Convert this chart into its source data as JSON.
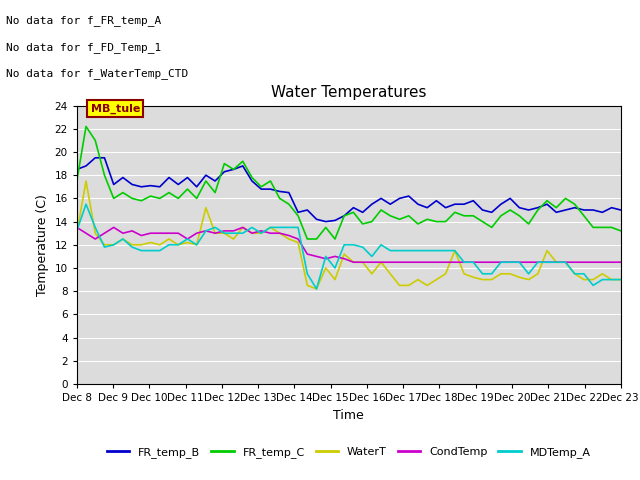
{
  "title": "Water Temperatures",
  "xlabel": "Time",
  "ylabel": "Temperature (C)",
  "ylim": [
    0,
    24
  ],
  "yticks": [
    0,
    2,
    4,
    6,
    8,
    10,
    12,
    14,
    16,
    18,
    20,
    22,
    24
  ],
  "bg_color": "#dcdcdc",
  "fig_color": "#ffffff",
  "messages": [
    "No data for f_FR_temp_A",
    "No data for f_FD_Temp_1",
    "No data for f_WaterTemp_CTD"
  ],
  "mb_tule_label": "MB_tule",
  "x_labels": [
    "Dec 8",
    "Dec 9",
    "Dec 10",
    "Dec 11",
    "Dec 12",
    "Dec 13",
    "Dec 14",
    "Dec 15",
    "Dec 16",
    "Dec 17",
    "Dec 18",
    "Dec 19",
    "Dec 20",
    "Dec 21",
    "Dec 22",
    "Dec 23"
  ],
  "series": {
    "FR_temp_B": {
      "color": "#0000cc",
      "linewidth": 1.2,
      "values": [
        18.5,
        18.8,
        19.5,
        19.5,
        17.2,
        17.8,
        17.2,
        17.0,
        17.1,
        17.0,
        17.8,
        17.2,
        17.8,
        17.0,
        18.0,
        17.5,
        18.3,
        18.5,
        18.8,
        17.5,
        16.8,
        16.8,
        16.6,
        16.5,
        14.8,
        15.0,
        14.2,
        14.0,
        14.1,
        14.5,
        15.2,
        14.8,
        15.5,
        16.0,
        15.5,
        16.0,
        16.2,
        15.5,
        15.2,
        15.8,
        15.2,
        15.5,
        15.5,
        15.8,
        15.0,
        14.8,
        15.5,
        16.0,
        15.2,
        15.0,
        15.2,
        15.5,
        14.8,
        15.0,
        15.2,
        15.0,
        15.0,
        14.8,
        15.2,
        15.0
      ]
    },
    "FR_temp_C": {
      "color": "#00cc00",
      "linewidth": 1.2,
      "values": [
        17.5,
        22.2,
        21.0,
        18.0,
        16.0,
        16.5,
        16.0,
        15.8,
        16.2,
        16.0,
        16.5,
        16.0,
        16.8,
        16.0,
        17.5,
        16.5,
        19.0,
        18.5,
        19.2,
        17.8,
        17.0,
        17.5,
        16.0,
        15.5,
        14.5,
        12.5,
        12.5,
        13.5,
        12.5,
        14.5,
        14.8,
        13.8,
        14.0,
        15.0,
        14.5,
        14.2,
        14.5,
        13.8,
        14.2,
        14.0,
        14.0,
        14.8,
        14.5,
        14.5,
        14.0,
        13.5,
        14.5,
        15.0,
        14.5,
        13.8,
        15.0,
        15.8,
        15.2,
        16.0,
        15.5,
        14.5,
        13.5,
        13.5,
        13.5,
        13.2
      ]
    },
    "WaterT": {
      "color": "#cccc00",
      "linewidth": 1.2,
      "values": [
        13.0,
        17.5,
        13.0,
        12.0,
        12.0,
        12.5,
        12.0,
        12.0,
        12.2,
        12.0,
        12.5,
        12.0,
        12.2,
        12.0,
        15.2,
        13.0,
        13.0,
        12.5,
        13.5,
        13.0,
        13.0,
        13.5,
        13.0,
        12.5,
        12.2,
        8.5,
        8.2,
        10.0,
        9.0,
        11.2,
        10.5,
        10.5,
        9.5,
        10.5,
        9.5,
        8.5,
        8.5,
        9.0,
        8.5,
        9.0,
        9.5,
        11.5,
        9.5,
        9.2,
        9.0,
        9.0,
        9.5,
        9.5,
        9.2,
        9.0,
        9.5,
        11.5,
        10.5,
        10.5,
        9.5,
        9.0,
        9.0,
        9.5,
        9.0,
        9.0
      ]
    },
    "CondTemp": {
      "color": "#cc00cc",
      "linewidth": 1.2,
      "values": [
        13.5,
        13.0,
        12.5,
        13.0,
        13.5,
        13.0,
        13.2,
        12.8,
        13.0,
        13.0,
        13.0,
        13.0,
        12.5,
        13.0,
        13.2,
        13.0,
        13.2,
        13.2,
        13.5,
        13.0,
        13.2,
        13.0,
        13.0,
        12.8,
        12.5,
        11.2,
        11.0,
        10.8,
        11.0,
        10.8,
        10.5,
        10.5,
        10.5,
        10.5,
        10.5,
        10.5,
        10.5,
        10.5,
        10.5,
        10.5,
        10.5,
        10.5,
        10.5,
        10.5,
        10.5,
        10.5,
        10.5,
        10.5,
        10.5,
        10.5,
        10.5,
        10.5,
        10.5,
        10.5,
        10.5,
        10.5,
        10.5,
        10.5,
        10.5,
        10.5
      ]
    },
    "MDTemp_A": {
      "color": "#00cccc",
      "linewidth": 1.2,
      "values": [
        13.2,
        15.5,
        13.5,
        11.8,
        12.0,
        12.5,
        11.8,
        11.5,
        11.5,
        11.5,
        12.0,
        12.0,
        12.5,
        12.0,
        13.2,
        13.5,
        13.0,
        13.0,
        13.0,
        13.5,
        13.0,
        13.5,
        13.5,
        13.5,
        13.5,
        9.5,
        8.2,
        11.0,
        10.0,
        12.0,
        12.0,
        11.8,
        11.0,
        12.0,
        11.5,
        11.5,
        11.5,
        11.5,
        11.5,
        11.5,
        11.5,
        11.5,
        10.5,
        10.5,
        9.5,
        9.5,
        10.5,
        10.5,
        10.5,
        9.5,
        10.5,
        10.5,
        10.5,
        10.5,
        9.5,
        9.5,
        8.5,
        9.0,
        9.0,
        9.0
      ]
    }
  },
  "legend_entries": [
    "FR_temp_B",
    "FR_temp_C",
    "WaterT",
    "CondTemp",
    "MDTemp_A"
  ],
  "legend_colors": [
    "#0000cc",
    "#00cc00",
    "#cccc00",
    "#cc00cc",
    "#00cccc"
  ]
}
